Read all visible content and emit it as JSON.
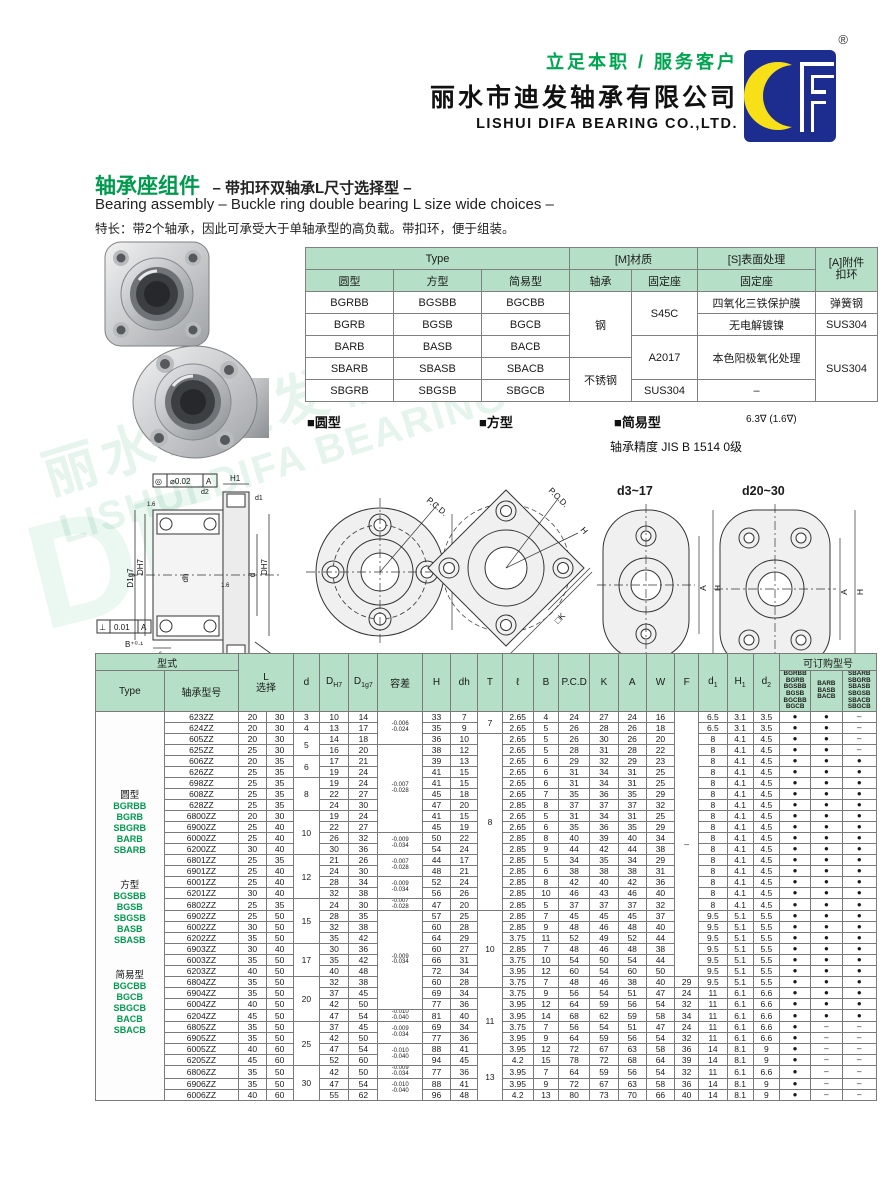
{
  "header": {
    "slogan": "立足本职 / 服务客户",
    "company_cn": "丽水市迪发轴承有限公司",
    "company_en": "LISHUI DIFA BEARING CO.,LTD.",
    "registered_mark": "®"
  },
  "title": {
    "cn_main": "轴承座组件",
    "cn_sub": "– 带扣环双轴承L尺寸选择型 –",
    "en": "Bearing assembly – Buckle ring double bearing L size wide choices –",
    "feature": "特长：带2个轴承，因此可承受大于单轴承型的高负载。带扣环，便于组装。"
  },
  "watermark": {
    "line1": "丽水市迪发轴承有限公司",
    "line2": "LISHUI DIFA BEARING CO.,LTD.",
    "df": "DF"
  },
  "spec_table": {
    "h_type": "Type",
    "h_material": "[M]材质",
    "h_surface": "[S]表面处理",
    "h_accessory": "[A]附件\n扣环",
    "h_round": "圆型",
    "h_square": "方型",
    "h_simple": "简易型",
    "h_bearing": "轴承",
    "h_holder_m": "固定座",
    "h_holder_s": "固定座",
    "rows": [
      [
        "BGRBB",
        "BGSBB",
        "BGCBB",
        "钢",
        "S45C",
        "四氧化三铁保护膜",
        "弹簧钢"
      ],
      [
        "BGRB",
        "BGSB",
        "BGCB",
        "无电解镀镍",
        "SUS304"
      ],
      [
        "BARB",
        "BASB",
        "BACB",
        "A2017",
        "本色阳极氧化处理",
        "SUS304"
      ],
      [
        "SBARB",
        "SBASB",
        "SBACB",
        "不锈钢"
      ],
      [
        "SBGRB",
        "SBGSB",
        "SBGCB",
        "SUS304",
        "–"
      ]
    ]
  },
  "sections": {
    "round": "■圆型",
    "square": "■方型",
    "simple": "■简易型",
    "roughness": "6.3∇ (1.6∇)",
    "precision": "轴承精度  JIS  B  1514  0级"
  },
  "drawings": {
    "cross": {
      "fcf_top_sym": "◎",
      "fcf_top_val": "⌀0.02",
      "fcf_top_ref": "A",
      "fcf_bot_sym": "⊥",
      "fcf_bot_val": "0.01",
      "fcf_bot_ref": "A",
      "h1": "H1",
      "d2": "d2",
      "d1": "d1",
      "D1g7": "D1g7",
      "DH7": "DH7",
      "dh": "dh",
      "d": "d",
      "DH7b": "DH7",
      "l": "ℓ",
      "B": "B⁺⁰·¹",
      "T": "T",
      "L": "L",
      "datum": "A",
      "r16a": "1.6",
      "r16b": "1.6"
    },
    "round_view": {
      "pcd": "P.C.D.",
      "H": "H"
    },
    "square_view": {
      "pcd": "P.C.D.",
      "H": "H",
      "K": "□K"
    },
    "simple_small": {
      "title": "d3~17",
      "A": "A",
      "H": "H",
      "W": "W"
    },
    "simple_large": {
      "title": "d20~30",
      "A": "A",
      "H": "H",
      "F": "F",
      "W": "W"
    }
  },
  "main_table": {
    "header": {
      "xingshi": "型式",
      "type": "Type",
      "model": "轴承型号",
      "L": "L\n选择",
      "d": "d",
      "DH7_main": "D",
      "DH7_sub": "H7",
      "D1g7_main": "D",
      "D1g7_sub": "1g7",
      "tol": "容差",
      "H": "H",
      "dh": "dh",
      "T": "T",
      "l": "ℓ",
      "B": "B",
      "PCD": "P.C.D",
      "K": "K",
      "A": "A",
      "W": "W",
      "F": "F",
      "d1_main": "d",
      "d1_sub": "1",
      "H1_main": "H",
      "H1_sub": "1",
      "d2_main": "d",
      "d2_sub": "2",
      "orderable": "可订购型号",
      "codes1": "BGRBB\nBGRB\nBGSBB\nBGSB\nBGCBB\nBGCB",
      "codes2": "BARB\nBASB\nBACB",
      "codes3": "SBARB\nSBGRB\nSBASB\nSBGSB\nSBACB\nSBGCB"
    },
    "type_groups": [
      {
        "title": "圆型",
        "codes": [
          "BGRBB",
          "BGRB",
          "SBGRB",
          "BARB",
          "SBARB"
        ]
      },
      {
        "title": "方型",
        "codes": [
          "BGSBB",
          "BGSB",
          "SBGSB",
          "BASB",
          "SBASB"
        ]
      },
      {
        "title": "简易型",
        "codes": [
          "BGCBB",
          "BGCB",
          "SBGCB",
          "BACB",
          "SBACB"
        ]
      }
    ],
    "rows": [
      [
        "623ZZ",
        "20",
        "30",
        "3",
        "10",
        "14",
        [
          "-0.006\n-0.024",
          3
        ],
        "33",
        "7",
        [
          "7",
          2
        ],
        "2.65",
        "4",
        "24",
        "27",
        "24",
        "16",
        [
          "–",
          24
        ],
        "6.5",
        "3.1",
        "3.5",
        "●",
        "●",
        "–"
      ],
      [
        "624ZZ",
        "20",
        "30",
        "4",
        "13",
        "17",
        null,
        "35",
        "9",
        null,
        "2.65",
        "5",
        "26",
        "28",
        "26",
        "18",
        null,
        "6.5",
        "3.1",
        "3.5",
        "●",
        "●",
        "–"
      ],
      [
        "605ZZ",
        "20",
        "30",
        [
          "5",
          2
        ],
        "14",
        "18",
        null,
        "36",
        "10",
        [
          "8",
          16
        ],
        "2.65",
        "5",
        "26",
        "30",
        "26",
        "20",
        null,
        "8",
        "4.1",
        "4.5",
        "●",
        "●",
        "–"
      ],
      [
        "625ZZ",
        "25",
        "30",
        null,
        "16",
        "20",
        [
          "-0.007\n-0.028",
          8
        ],
        "38",
        "12",
        null,
        "2.65",
        "5",
        "28",
        "31",
        "28",
        "22",
        null,
        "8",
        "4.1",
        "4.5",
        "●",
        "●",
        "–"
      ],
      [
        "606ZZ",
        "20",
        "35",
        [
          "6",
          2
        ],
        "17",
        "21",
        null,
        "39",
        "13",
        null,
        "2.65",
        "6",
        "29",
        "32",
        "29",
        "23",
        null,
        "8",
        "4.1",
        "4.5",
        "●",
        "●",
        "●"
      ],
      [
        "626ZZ",
        "25",
        "35",
        null,
        "19",
        "24",
        null,
        "41",
        "15",
        null,
        "2.65",
        "6",
        "31",
        "34",
        "31",
        "25",
        null,
        "8",
        "4.1",
        "4.5",
        "●",
        "●",
        "●"
      ],
      [
        "698ZZ",
        "25",
        "35",
        [
          "8",
          3
        ],
        "19",
        "24",
        null,
        "41",
        "15",
        null,
        "2.65",
        "6",
        "31",
        "34",
        "31",
        "25",
        null,
        "8",
        "4.1",
        "4.5",
        "●",
        "●",
        "●"
      ],
      [
        "608ZZ",
        "25",
        "35",
        null,
        "22",
        "27",
        null,
        "45",
        "18",
        null,
        "2.65",
        "7",
        "35",
        "36",
        "35",
        "29",
        null,
        "8",
        "4.1",
        "4.5",
        "●",
        "●",
        "●"
      ],
      [
        "628ZZ",
        "25",
        "35",
        null,
        "24",
        "30",
        null,
        "47",
        "20",
        null,
        "2.85",
        "8",
        "37",
        "37",
        "37",
        "32",
        null,
        "8",
        "4.1",
        "4.5",
        "●",
        "●",
        "●"
      ],
      [
        "6800ZZ",
        "20",
        "30",
        [
          "10",
          4
        ],
        "19",
        "24",
        null,
        "41",
        "15",
        null,
        "2.65",
        "5",
        "31",
        "34",
        "31",
        "25",
        null,
        "8",
        "4.1",
        "4.5",
        "●",
        "●",
        "●"
      ],
      [
        "6900ZZ",
        "25",
        "40",
        null,
        "22",
        "27",
        null,
        "45",
        "19",
        null,
        "2.65",
        "6",
        "35",
        "36",
        "35",
        "29",
        null,
        "8",
        "4.1",
        "4.5",
        "●",
        "●",
        "●"
      ],
      [
        "6000ZZ",
        "25",
        "40",
        null,
        "26",
        "32",
        [
          "-0.009\n-0.034",
          2
        ],
        "50",
        "22",
        null,
        "2.85",
        "8",
        "40",
        "39",
        "40",
        "34",
        null,
        "8",
        "4.1",
        "4.5",
        "●",
        "●",
        "●"
      ],
      [
        "6200ZZ",
        "30",
        "40",
        null,
        "30",
        "36",
        null,
        "54",
        "24",
        null,
        "2.85",
        "9",
        "44",
        "42",
        "44",
        "38",
        null,
        "8",
        "4.1",
        "4.5",
        "●",
        "●",
        "●"
      ],
      [
        "6801ZZ",
        "25",
        "35",
        [
          "12",
          4
        ],
        "21",
        "26",
        [
          "-0.007\n-0.028",
          2
        ],
        "44",
        "17",
        null,
        "2.85",
        "5",
        "34",
        "35",
        "34",
        "29",
        null,
        "8",
        "4.1",
        "4.5",
        "●",
        "●",
        "●"
      ],
      [
        "6901ZZ",
        "25",
        "40",
        null,
        "24",
        "30",
        null,
        "48",
        "21",
        null,
        "2.85",
        "6",
        "38",
        "38",
        "38",
        "31",
        null,
        "8",
        "4.1",
        "4.5",
        "●",
        "●",
        "●"
      ],
      [
        "6001ZZ",
        "25",
        "40",
        null,
        "28",
        "34",
        [
          "-0.009\n-0.034",
          2
        ],
        "52",
        "24",
        null,
        "2.85",
        "8",
        "42",
        "40",
        "42",
        "36",
        null,
        "8",
        "4.1",
        "4.5",
        "●",
        "●",
        "●"
      ],
      [
        "6201ZZ",
        "30",
        "40",
        null,
        "32",
        "38",
        null,
        "56",
        "26",
        null,
        "2.85",
        "10",
        "46",
        "43",
        "46",
        "40",
        null,
        "8",
        "4.1",
        "4.5",
        "●",
        "●",
        "●"
      ],
      [
        "6802ZZ",
        "25",
        "35",
        [
          "15",
          4
        ],
        "24",
        "30",
        [
          "-0.007\n-0.028",
          1
        ],
        "47",
        "20",
        null,
        "2.85",
        "5",
        "37",
        "37",
        "37",
        "32",
        null,
        "8",
        "4.1",
        "4.5",
        "●",
        "●",
        "●"
      ],
      [
        "6902ZZ",
        "25",
        "50",
        null,
        "28",
        "35",
        [
          "-0.009\n-0.034",
          9
        ],
        "57",
        "25",
        [
          "10",
          7
        ],
        "2.85",
        "7",
        "45",
        "45",
        "45",
        "37",
        null,
        "9.5",
        "5.1",
        "5.5",
        "●",
        "●",
        "●"
      ],
      [
        "6002ZZ",
        "30",
        "50",
        null,
        "32",
        "38",
        null,
        "60",
        "28",
        null,
        "2.85",
        "9",
        "48",
        "46",
        "48",
        "40",
        null,
        "9.5",
        "5.1",
        "5.5",
        "●",
        "●",
        "●"
      ],
      [
        "6202ZZ",
        "35",
        "50",
        null,
        "35",
        "42",
        null,
        "64",
        "29",
        null,
        "3.75",
        "11",
        "52",
        "49",
        "52",
        "44",
        null,
        "9.5",
        "5.1",
        "5.5",
        "●",
        "●",
        "●"
      ],
      [
        "6903ZZ",
        "30",
        "40",
        [
          "17",
          3
        ],
        "30",
        "36",
        null,
        "60",
        "27",
        null,
        "2.85",
        "7",
        "48",
        "46",
        "48",
        "38",
        null,
        "9.5",
        "5.1",
        "5.5",
        "●",
        "●",
        "●"
      ],
      [
        "6003ZZ",
        "35",
        "50",
        null,
        "35",
        "42",
        null,
        "66",
        "31",
        null,
        "3.75",
        "10",
        "54",
        "50",
        "54",
        "44",
        null,
        "9.5",
        "5.1",
        "5.5",
        "●",
        "●",
        "●"
      ],
      [
        "6203ZZ",
        "40",
        "50",
        null,
        "40",
        "48",
        null,
        "72",
        "34",
        null,
        "3.95",
        "12",
        "60",
        "54",
        "60",
        "50",
        null,
        "9.5",
        "5.1",
        "5.5",
        "●",
        "●",
        "●"
      ],
      [
        "6804ZZ",
        "35",
        "50",
        [
          "20",
          4
        ],
        "32",
        "38",
        null,
        "60",
        "28",
        null,
        "3.75",
        "7",
        "48",
        "46",
        "38",
        "40",
        "29",
        "9.5",
        "5.1",
        "5.5",
        "●",
        "●",
        "●"
      ],
      [
        "6904ZZ",
        "35",
        "50",
        null,
        "37",
        "45",
        null,
        "69",
        "34",
        [
          "11",
          6
        ],
        "3.75",
        "9",
        "56",
        "54",
        "51",
        "47",
        "24",
        "11",
        "6.1",
        "6.6",
        "●",
        "●",
        "●"
      ],
      [
        "6004ZZ",
        "40",
        "50",
        null,
        "42",
        "50",
        null,
        "77",
        "36",
        null,
        "3.95",
        "12",
        "64",
        "59",
        "56",
        "54",
        "32",
        "11",
        "6.1",
        "6.6",
        "●",
        "●",
        "●"
      ],
      [
        "6204ZZ",
        "45",
        "50",
        null,
        "47",
        "54",
        [
          "-0.010\n-0.040",
          1
        ],
        "81",
        "40",
        null,
        "3.95",
        "14",
        "68",
        "62",
        "59",
        "58",
        "34",
        "11",
        "6.1",
        "6.6",
        "●",
        "●",
        "●"
      ],
      [
        "6805ZZ",
        "35",
        "50",
        [
          "25",
          4
        ],
        "37",
        "45",
        [
          "-0.009\n-0.034",
          2
        ],
        "69",
        "34",
        null,
        "3.75",
        "7",
        "56",
        "54",
        "51",
        "47",
        "24",
        "11",
        "6.1",
        "6.6",
        "●",
        "–",
        "–"
      ],
      [
        "6905ZZ",
        "35",
        "50",
        null,
        "42",
        "50",
        null,
        "77",
        "36",
        null,
        "3.95",
        "9",
        "64",
        "59",
        "56",
        "54",
        "32",
        "11",
        "6.1",
        "6.6",
        "●",
        "–",
        "–"
      ],
      [
        "6005ZZ",
        "40",
        "60",
        null,
        "47",
        "54",
        [
          "-0.010\n-0.040",
          2
        ],
        "88",
        "41",
        null,
        "3.95",
        "12",
        "72",
        "67",
        "63",
        "58",
        "36",
        "14",
        "8.1",
        "9",
        "●",
        "–",
        "–"
      ],
      [
        "6205ZZ",
        "45",
        "60",
        null,
        "52",
        "60",
        null,
        "94",
        "45",
        [
          "13",
          4
        ],
        "4.2",
        "15",
        "78",
        "72",
        "68",
        "64",
        "39",
        "14",
        "8.1",
        "9",
        "●",
        "–",
        "–"
      ],
      [
        "6806ZZ",
        "35",
        "50",
        [
          "30",
          3
        ],
        "42",
        "50",
        [
          "-0.009\n-0.034",
          1
        ],
        "77",
        "36",
        null,
        "3.95",
        "7",
        "64",
        "59",
        "56",
        "54",
        "32",
        "11",
        "6.1",
        "6.6",
        "●",
        "–",
        "–"
      ],
      [
        "6906ZZ",
        "35",
        "50",
        null,
        "47",
        "54",
        [
          "-0.010\n-0.040",
          2
        ],
        "88",
        "41",
        null,
        "3.95",
        "9",
        "72",
        "67",
        "63",
        "58",
        "36",
        "14",
        "8.1",
        "9",
        "●",
        "–",
        "–"
      ],
      [
        "6006ZZ",
        "40",
        "60",
        null,
        "55",
        "62",
        null,
        "96",
        "48",
        null,
        "4.2",
        "13",
        "80",
        "73",
        "70",
        "66",
        "40",
        "14",
        "8.1",
        "9",
        "●",
        "–",
        "–"
      ]
    ]
  },
  "colors": {
    "accent_green": "#009a4e",
    "header_green": "#b5dfc6",
    "logo_blue": "#1d2d8f",
    "logo_yellow": "#f7e017"
  }
}
